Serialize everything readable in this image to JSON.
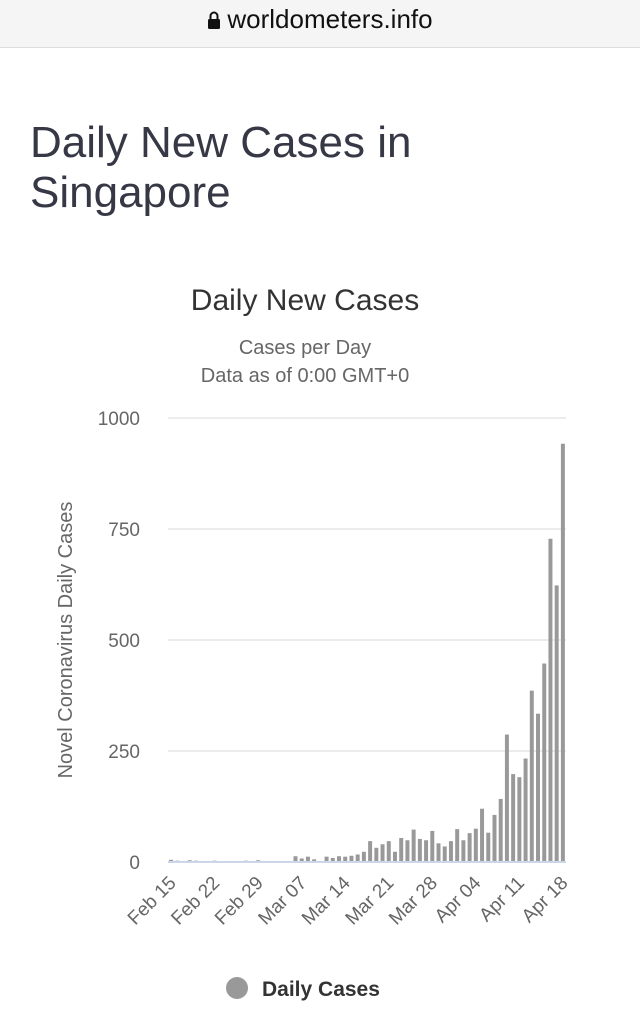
{
  "url": "worldometers.info",
  "heading": "Daily New Cases in Singapore",
  "chart_data": {
    "type": "bar",
    "title": "Daily New Cases",
    "subtitle": [
      "Cases per Day",
      "Data as of 0:00 GMT+0"
    ],
    "y_label": "Novel Coronavirus Daily Cases",
    "categories": [
      "Feb 15",
      null,
      null,
      null,
      null,
      null,
      null,
      "Feb 22",
      null,
      null,
      null,
      null,
      null,
      null,
      "Feb 29",
      null,
      null,
      null,
      null,
      null,
      null,
      "Mar 07",
      null,
      null,
      null,
      null,
      null,
      null,
      "Mar 14",
      null,
      null,
      null,
      null,
      null,
      null,
      "Mar 21",
      null,
      null,
      null,
      null,
      null,
      null,
      "Mar 28",
      null,
      null,
      null,
      null,
      null,
      null,
      "Apr 04",
      null,
      null,
      null,
      null,
      null,
      null,
      "Apr 11",
      null,
      null,
      null,
      null,
      null,
      null,
      "Apr 18"
    ],
    "series": [
      {
        "name": "Daily Cases",
        "color": "#999999",
        "values": [
          5,
          3,
          2,
          4,
          3,
          1,
          1,
          3,
          1,
          1,
          1,
          2,
          3,
          2,
          4,
          2,
          2,
          2,
          2,
          2,
          13,
          8,
          12,
          6,
          0,
          12,
          9,
          13,
          12,
          14,
          17,
          23,
          47,
          32,
          40,
          47,
          23,
          54,
          49,
          73,
          52,
          49,
          70,
          42,
          35,
          47,
          74,
          49,
          65,
          75,
          120,
          66,
          106,
          142,
          287,
          198,
          191,
          233,
          386,
          334,
          447,
          728,
          623,
          942
        ]
      }
    ],
    "ylim": [
      0,
      1000
    ],
    "yticks": [
      0,
      250,
      500,
      750,
      1000
    ],
    "grid": true,
    "legend": "bottom"
  }
}
